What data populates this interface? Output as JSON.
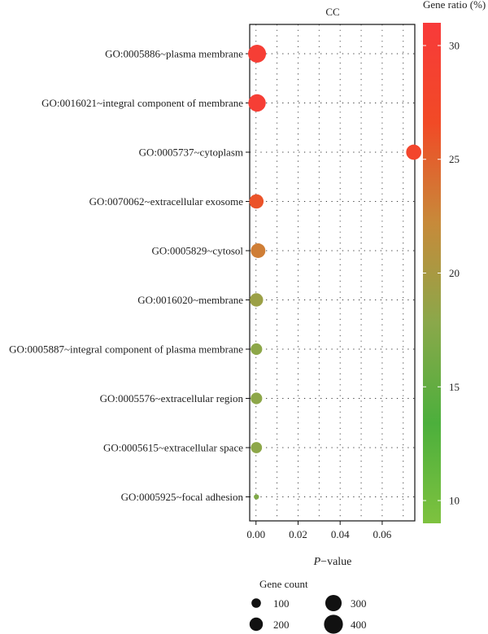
{
  "chart_data": {
    "type": "scatter",
    "title": "CC",
    "xlabel_prefix": "P",
    "xlabel_suffix": "−value",
    "xlim": [
      -0.003,
      0.0755
    ],
    "xticks": [
      0.0,
      0.02,
      0.04,
      0.06
    ],
    "xtick_labels": [
      "0.00",
      "0.02",
      "0.04",
      "0.06"
    ],
    "categories": [
      "GO:0005886~plasma membrane",
      "GO:0016021~integral component of membrane",
      "GO:0005737~cytoplasm",
      "GO:0070062~extracellular exosome",
      "GO:0005829~cytosol",
      "GO:0016020~membrane",
      "GO:0005887~integral component of plasma membrane",
      "GO:0005576~extracellular region",
      "GO:0005615~extracellular space",
      "GO:0005925~focal adhesion"
    ],
    "series": [
      {
        "p_value": [
          0.0005,
          0.0005,
          0.075,
          0.0002,
          0.001,
          0.0002,
          0.0002,
          0.0002,
          0.0002,
          0.0002
        ],
        "gene_ratio": [
          30.0,
          30.0,
          28.0,
          26.0,
          23.0,
          19.0,
          18.0,
          18.0,
          18.0,
          17.0
        ],
        "gene_count": [
          360,
          340,
          260,
          230,
          240,
          200,
          150,
          150,
          140,
          30
        ]
      }
    ],
    "color_legend": {
      "title": "Gene ratio (%)",
      "min": 9,
      "max": 31,
      "ticks": [
        10,
        15,
        20,
        25,
        30
      ],
      "colors": [
        "#7ec23f",
        "#4caf3c",
        "#8aa84a",
        "#c78a3a",
        "#f14a26",
        "#f83a3a"
      ]
    },
    "size_legend": {
      "title": "Gene count",
      "values": [
        100,
        200,
        300,
        400
      ]
    },
    "grid": "dotted"
  }
}
